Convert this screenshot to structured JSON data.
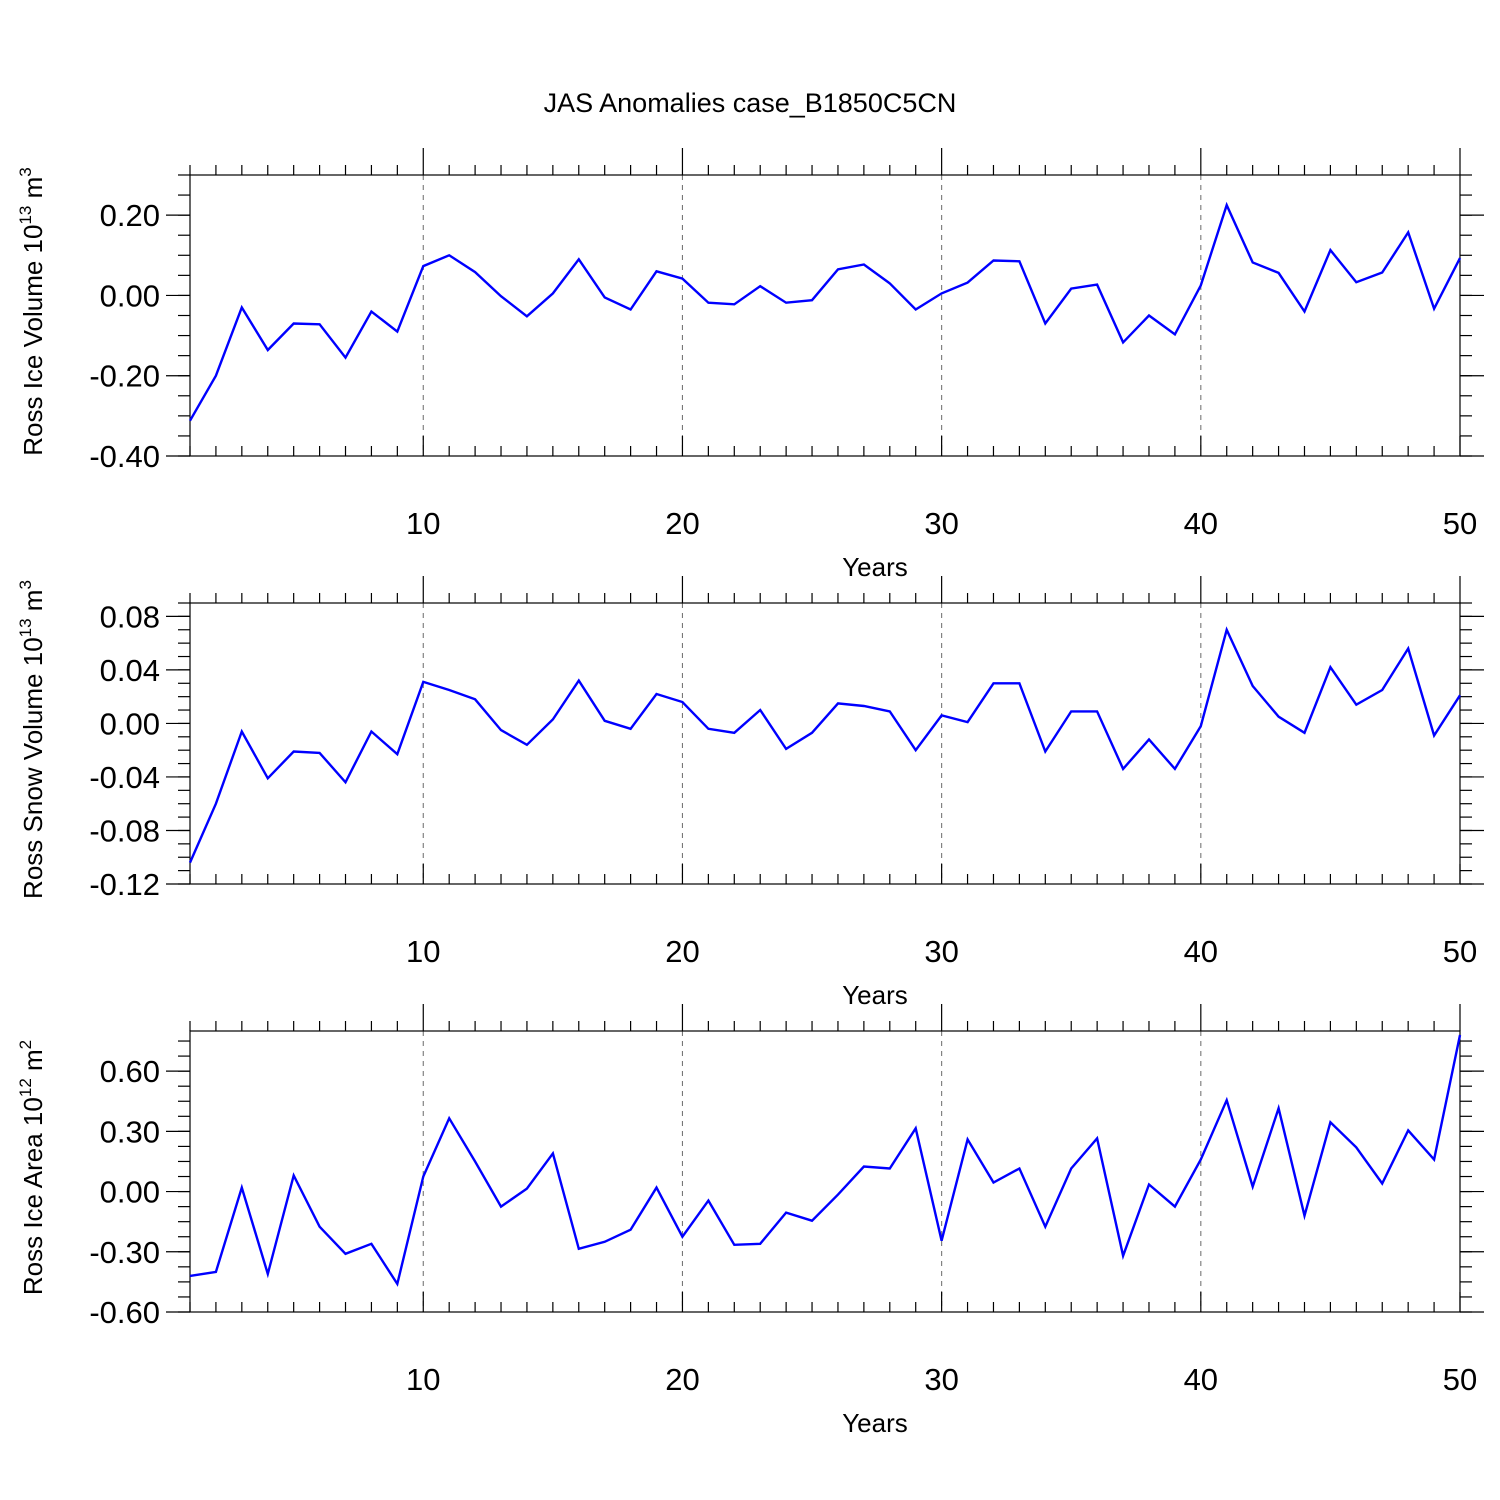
{
  "title": "JAS Anomalies case_B1850C5CN",
  "chart_data": [
    {
      "type": "line",
      "ylabel": {
        "text": "Ross Ice Volume 10",
        "sup": "13",
        "unit": " m",
        "unit_sup": "3"
      },
      "xlabel": "Years",
      "xlim": [
        1,
        50
      ],
      "ylim": [
        -0.4,
        0.3
      ],
      "yticks": [
        -0.4,
        -0.2,
        0.0,
        0.2
      ],
      "ytick_labels": [
        "-0.40",
        "-0.20",
        "0.00",
        "0.20"
      ],
      "xticks": [
        10,
        20,
        30,
        40,
        50
      ],
      "xtick_labels": [
        "10",
        "20",
        "30",
        "40",
        "50"
      ],
      "yminor_step": 0.05,
      "vgrid_at": [
        10,
        20,
        30,
        40
      ],
      "series_color": "#0000ff",
      "x": [
        1,
        2,
        3,
        4,
        5,
        6,
        7,
        8,
        9,
        10,
        11,
        12,
        13,
        14,
        15,
        16,
        17,
        18,
        19,
        20,
        21,
        22,
        23,
        24,
        25,
        26,
        27,
        28,
        29,
        30,
        31,
        32,
        33,
        34,
        35,
        36,
        37,
        38,
        39,
        40,
        41,
        42,
        43,
        44,
        45,
        46,
        47,
        48,
        49,
        50
      ],
      "values": [
        -0.312,
        -0.2,
        -0.03,
        -0.136,
        -0.07,
        -0.072,
        -0.155,
        -0.04,
        -0.09,
        0.073,
        0.1,
        0.058,
        -0.002,
        -0.052,
        0.005,
        0.09,
        -0.005,
        -0.035,
        0.06,
        0.042,
        -0.018,
        -0.022,
        0.023,
        -0.018,
        -0.012,
        0.065,
        0.077,
        0.03,
        -0.035,
        0.005,
        0.032,
        0.087,
        0.085,
        -0.07,
        0.017,
        0.027,
        -0.117,
        -0.05,
        -0.097,
        0.025,
        0.225,
        0.082,
        0.056,
        -0.04,
        0.113,
        0.033,
        0.057,
        0.157,
        -0.033,
        0.093
      ]
    },
    {
      "type": "line",
      "ylabel": {
        "text": "Ross Snow Volume 10",
        "sup": "13",
        "unit": " m",
        "unit_sup": "3"
      },
      "xlabel": "Years",
      "xlim": [
        1,
        50
      ],
      "ylim": [
        -0.12,
        0.09
      ],
      "yticks": [
        -0.12,
        -0.08,
        -0.04,
        0.0,
        0.04,
        0.08
      ],
      "ytick_labels": [
        "-0.12",
        "-0.08",
        "-0.04",
        "0.00",
        "0.04",
        "0.08"
      ],
      "xticks": [
        10,
        20,
        30,
        40,
        50
      ],
      "xtick_labels": [
        "10",
        "20",
        "30",
        "40",
        "50"
      ],
      "yminor_step": 0.01,
      "vgrid_at": [
        10,
        20,
        30,
        40
      ],
      "series_color": "#0000ff",
      "x": [
        1,
        2,
        3,
        4,
        5,
        6,
        7,
        8,
        9,
        10,
        11,
        12,
        13,
        14,
        15,
        16,
        17,
        18,
        19,
        20,
        21,
        22,
        23,
        24,
        25,
        26,
        27,
        28,
        29,
        30,
        31,
        32,
        33,
        34,
        35,
        36,
        37,
        38,
        39,
        40,
        41,
        42,
        43,
        44,
        45,
        46,
        47,
        48,
        49,
        50
      ],
      "values": [
        -0.104,
        -0.06,
        -0.006,
        -0.041,
        -0.021,
        -0.022,
        -0.044,
        -0.006,
        -0.023,
        0.031,
        0.025,
        0.018,
        -0.005,
        -0.016,
        0.003,
        0.032,
        0.002,
        -0.004,
        0.022,
        0.016,
        -0.004,
        -0.007,
        0.01,
        -0.019,
        -0.007,
        0.015,
        0.013,
        0.009,
        -0.02,
        0.006,
        0.001,
        0.03,
        0.03,
        -0.021,
        0.009,
        0.009,
        -0.034,
        -0.012,
        -0.034,
        -0.002,
        0.07,
        0.028,
        0.005,
        -0.007,
        0.042,
        0.014,
        0.025,
        0.056,
        -0.009,
        0.021
      ]
    },
    {
      "type": "line",
      "ylabel": {
        "text": "Ross Ice Area 10",
        "sup": "12",
        "unit": " m",
        "unit_sup": "2"
      },
      "xlabel": "Years",
      "xlim": [
        1,
        50
      ],
      "ylim": [
        -0.6,
        0.8
      ],
      "yticks": [
        -0.6,
        -0.3,
        0.0,
        0.3,
        0.6
      ],
      "ytick_labels": [
        "-0.60",
        "-0.30",
        "0.00",
        "0.30",
        "0.60"
      ],
      "xticks": [
        10,
        20,
        30,
        40,
        50
      ],
      "xtick_labels": [
        "10",
        "20",
        "30",
        "40",
        "50"
      ],
      "yminor_step": 0.075,
      "vgrid_at": [
        10,
        20,
        30,
        40
      ],
      "series_color": "#0000ff",
      "x": [
        1,
        2,
        3,
        4,
        5,
        6,
        7,
        8,
        9,
        10,
        11,
        12,
        13,
        14,
        15,
        16,
        17,
        18,
        19,
        20,
        21,
        22,
        23,
        24,
        25,
        26,
        27,
        28,
        29,
        30,
        31,
        32,
        33,
        34,
        35,
        36,
        37,
        38,
        39,
        40,
        41,
        42,
        43,
        44,
        45,
        46,
        47,
        48,
        49,
        50
      ],
      "values": [
        -0.42,
        -0.4,
        0.02,
        -0.41,
        0.08,
        -0.175,
        -0.31,
        -0.26,
        -0.46,
        0.075,
        0.365,
        0.15,
        -0.075,
        0.015,
        0.19,
        -0.285,
        -0.25,
        -0.19,
        0.02,
        -0.225,
        -0.045,
        -0.265,
        -0.26,
        -0.105,
        -0.145,
        -0.015,
        0.125,
        0.115,
        0.315,
        -0.245,
        0.26,
        0.045,
        0.115,
        -0.175,
        0.115,
        0.265,
        -0.32,
        0.035,
        -0.075,
        0.16,
        0.455,
        0.025,
        0.415,
        -0.12,
        0.345,
        0.22,
        0.04,
        0.305,
        0.16,
        0.78
      ]
    }
  ]
}
